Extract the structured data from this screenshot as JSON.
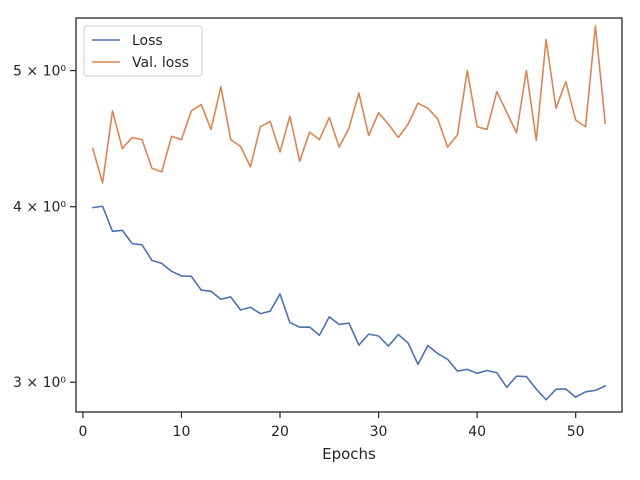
{
  "chart_data": {
    "type": "line",
    "title": "",
    "xlabel": "Epochs",
    "ylabel": "",
    "yscale": "log",
    "xlim": [
      -0.7,
      54.7
    ],
    "ylim": [
      2.857,
      5.45
    ],
    "grid": false,
    "legend": "top-left",
    "x_ticks": [
      0,
      10,
      20,
      30,
      40,
      50
    ],
    "x_tick_labels": [
      "0",
      "10",
      "20",
      "30",
      "40",
      "50"
    ],
    "y_ticks": [
      3,
      4,
      5
    ],
    "y_tick_labels": [
      "3 × 10⁰",
      "4 × 10⁰",
      "5 × 10⁰"
    ],
    "x": [
      1,
      2,
      3,
      4,
      5,
      6,
      7,
      8,
      9,
      10,
      11,
      12,
      13,
      14,
      15,
      16,
      17,
      18,
      19,
      20,
      21,
      22,
      23,
      24,
      25,
      26,
      27,
      28,
      29,
      30,
      31,
      32,
      33,
      34,
      35,
      36,
      37,
      38,
      39,
      40,
      41,
      42,
      43,
      44,
      45,
      46,
      47,
      48,
      49,
      50,
      51,
      52,
      53
    ],
    "series": [
      {
        "name": "Loss",
        "color": "#4c72b0",
        "values": [
          3.994,
          4.003,
          3.842,
          3.848,
          3.765,
          3.758,
          3.663,
          3.645,
          3.598,
          3.571,
          3.569,
          3.489,
          3.482,
          3.437,
          3.45,
          3.377,
          3.392,
          3.357,
          3.37,
          3.467,
          3.308,
          3.283,
          3.284,
          3.24,
          3.339,
          3.298,
          3.305,
          3.188,
          3.246,
          3.236,
          3.183,
          3.244,
          3.199,
          3.089,
          3.186,
          3.144,
          3.115,
          3.055,
          3.064,
          3.044,
          3.058,
          3.047,
          2.975,
          3.03,
          3.028,
          2.966,
          2.915,
          2.965,
          2.967,
          2.927,
          2.953,
          2.96,
          2.982
        ]
      },
      {
        "name": "Val. loss",
        "color": "#dd8452",
        "values": [
          4.4,
          4.16,
          4.68,
          4.4,
          4.48,
          4.465,
          4.26,
          4.235,
          4.49,
          4.465,
          4.68,
          4.73,
          4.54,
          4.87,
          4.465,
          4.415,
          4.27,
          4.56,
          4.6,
          4.375,
          4.64,
          4.31,
          4.52,
          4.465,
          4.63,
          4.41,
          4.55,
          4.82,
          4.495,
          4.665,
          4.58,
          4.48,
          4.58,
          4.74,
          4.7,
          4.62,
          4.41,
          4.5,
          5.0,
          4.56,
          4.54,
          4.83,
          4.67,
          4.515,
          5.0,
          4.46,
          5.26,
          4.7,
          4.91,
          4.61,
          4.56,
          5.38,
          4.585
        ]
      }
    ]
  }
}
